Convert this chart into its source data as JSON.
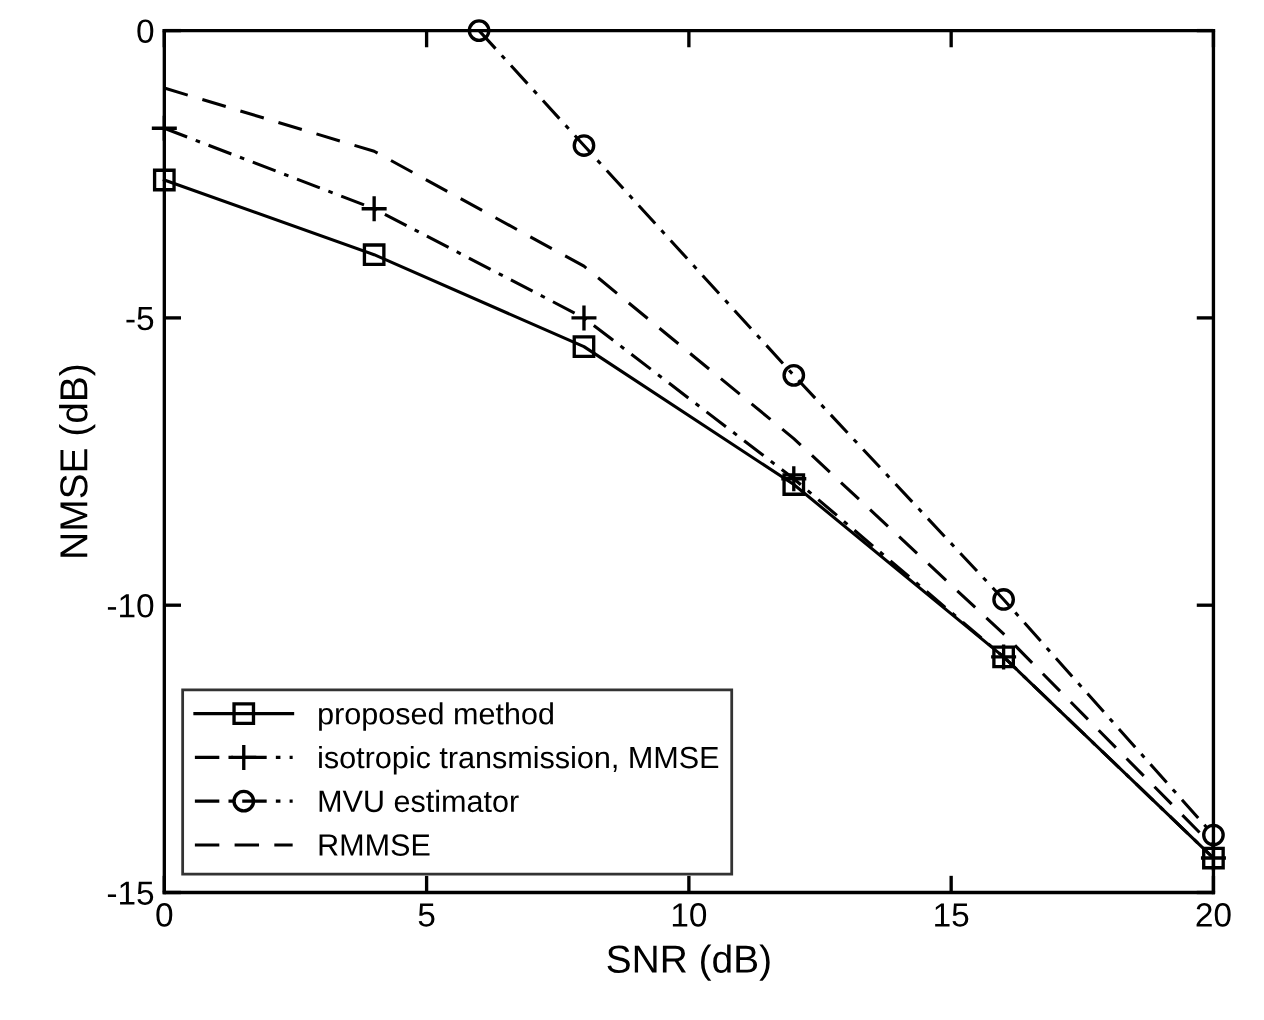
{
  "chart_data": {
    "type": "line",
    "xlabel": "SNR (dB)",
    "ylabel": "NMSE (dB)",
    "xlim": [
      0,
      20
    ],
    "ylim": [
      -15,
      0
    ],
    "xticks": [
      0,
      5,
      10,
      15,
      20
    ],
    "yticks": [
      -15,
      -10,
      -5,
      0
    ],
    "grid": false,
    "legend": "bottom left",
    "series": [
      {
        "name": "proposed method",
        "color": "#000000",
        "marker": "square",
        "line_style": "solid",
        "x": [
          0,
          4,
          8,
          12,
          16,
          20
        ],
        "values": [
          -2.6,
          -3.9,
          -5.5,
          -7.9,
          -10.9,
          -14.4
        ]
      },
      {
        "name": "isotropic transmission, MMSE",
        "color": "#000000",
        "marker": "cross",
        "line_style": "dashdot",
        "x": [
          0,
          4,
          8,
          12,
          16,
          20
        ],
        "values": [
          -1.7,
          -3.1,
          -5.0,
          -7.8,
          -10.9,
          -14.4
        ]
      },
      {
        "name": "MVU estimator",
        "color": "#000000",
        "marker": "circle",
        "line_style": "dashdot",
        "x": [
          6,
          8,
          12,
          16,
          20
        ],
        "values": [
          0,
          -2.0,
          -6.0,
          -9.9,
          -14.0
        ]
      },
      {
        "name": "RMMSE",
        "color": "#000000",
        "marker": "none",
        "line_style": "dashed",
        "x": [
          0,
          4,
          8,
          12,
          16,
          20
        ],
        "values": [
          -1.0,
          -2.1,
          -4.1,
          -7.1,
          -10.5,
          -14.2
        ]
      }
    ]
  }
}
